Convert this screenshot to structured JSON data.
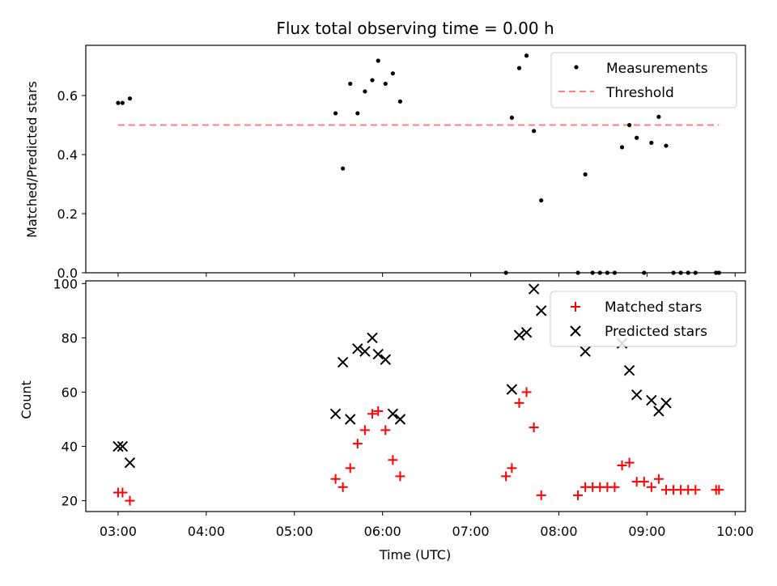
{
  "chart_data": [
    {
      "type": "scatter",
      "title": "Flux total observing time = 0.00 h",
      "ylabel": "Matched/Predicted stars",
      "ylim": [
        0,
        0.77
      ],
      "xlim": [
        "02:38",
        "10:07"
      ],
      "yticks": [
        "0.0",
        "0.2",
        "0.4",
        "0.6"
      ],
      "legend_position": "top-right",
      "series": [
        {
          "name": "Measurements",
          "marker": "dot",
          "color": "#000000",
          "points": [
            {
              "x": "03:00",
              "y": 0.575
            },
            {
              "x": "03:03",
              "y": 0.575
            },
            {
              "x": "03:08",
              "y": 0.59
            },
            {
              "x": "05:28",
              "y": 0.54
            },
            {
              "x": "05:33",
              "y": 0.353
            },
            {
              "x": "05:38",
              "y": 0.64
            },
            {
              "x": "05:43",
              "y": 0.54
            },
            {
              "x": "05:48",
              "y": 0.614
            },
            {
              "x": "05:53",
              "y": 0.652
            },
            {
              "x": "05:57",
              "y": 0.718
            },
            {
              "x": "06:02",
              "y": 0.64
            },
            {
              "x": "06:07",
              "y": 0.675
            },
            {
              "x": "06:12",
              "y": 0.58
            },
            {
              "x": "07:24",
              "y": 0.0
            },
            {
              "x": "07:28",
              "y": 0.525
            },
            {
              "x": "07:33",
              "y": 0.693
            },
            {
              "x": "07:38",
              "y": 0.735
            },
            {
              "x": "07:43",
              "y": 0.48
            },
            {
              "x": "07:48",
              "y": 0.245
            },
            {
              "x": "08:13",
              "y": 0.0
            },
            {
              "x": "08:18",
              "y": 0.333
            },
            {
              "x": "08:23",
              "y": 0.0
            },
            {
              "x": "08:28",
              "y": 0.0
            },
            {
              "x": "08:33",
              "y": 0.0
            },
            {
              "x": "08:38",
              "y": 0.0
            },
            {
              "x": "08:43",
              "y": 0.425
            },
            {
              "x": "08:48",
              "y": 0.5
            },
            {
              "x": "08:53",
              "y": 0.457
            },
            {
              "x": "08:58",
              "y": 0.0
            },
            {
              "x": "09:03",
              "y": 0.44
            },
            {
              "x": "09:08",
              "y": 0.528
            },
            {
              "x": "09:13",
              "y": 0.43
            },
            {
              "x": "09:18",
              "y": 0.0
            },
            {
              "x": "09:23",
              "y": 0.0
            },
            {
              "x": "09:28",
              "y": 0.0
            },
            {
              "x": "09:33",
              "y": 0.0
            },
            {
              "x": "09:47",
              "y": 0.0
            },
            {
              "x": "09:49",
              "y": 0.0
            }
          ]
        },
        {
          "name": "Threshold",
          "marker": "dashed-line",
          "color": "#ff7f7f",
          "points": [
            {
              "x": "03:00",
              "y": 0.5
            },
            {
              "x": "09:49",
              "y": 0.5
            }
          ]
        }
      ]
    },
    {
      "type": "scatter",
      "xlabel": "Time (UTC)",
      "ylabel": "Count",
      "ylim": [
        16,
        101
      ],
      "xlim": [
        "02:38",
        "10:07"
      ],
      "xticks": [
        "03:00",
        "04:00",
        "05:00",
        "06:00",
        "07:00",
        "08:00",
        "09:00",
        "10:00"
      ],
      "yticks": [
        "20",
        "40",
        "60",
        "80",
        "100"
      ],
      "legend_position": "top-right",
      "series": [
        {
          "name": "Matched stars",
          "marker": "plus",
          "color": "#ff0000",
          "points": [
            {
              "x": "03:00",
              "y": 23
            },
            {
              "x": "03:03",
              "y": 23
            },
            {
              "x": "03:08",
              "y": 20
            },
            {
              "x": "05:28",
              "y": 28
            },
            {
              "x": "05:33",
              "y": 25
            },
            {
              "x": "05:38",
              "y": 32
            },
            {
              "x": "05:43",
              "y": 41
            },
            {
              "x": "05:48",
              "y": 46
            },
            {
              "x": "05:53",
              "y": 52
            },
            {
              "x": "05:57",
              "y": 53
            },
            {
              "x": "06:02",
              "y": 46
            },
            {
              "x": "06:07",
              "y": 35
            },
            {
              "x": "06:12",
              "y": 29
            },
            {
              "x": "07:24",
              "y": 29
            },
            {
              "x": "07:28",
              "y": 32
            },
            {
              "x": "07:33",
              "y": 56
            },
            {
              "x": "07:38",
              "y": 60
            },
            {
              "x": "07:43",
              "y": 47
            },
            {
              "x": "07:48",
              "y": 22
            },
            {
              "x": "08:13",
              "y": 22
            },
            {
              "x": "08:18",
              "y": 25
            },
            {
              "x": "08:23",
              "y": 25
            },
            {
              "x": "08:28",
              "y": 25
            },
            {
              "x": "08:33",
              "y": 25
            },
            {
              "x": "08:38",
              "y": 25
            },
            {
              "x": "08:43",
              "y": 33
            },
            {
              "x": "08:48",
              "y": 34
            },
            {
              "x": "08:53",
              "y": 27
            },
            {
              "x": "08:58",
              "y": 27
            },
            {
              "x": "09:03",
              "y": 25
            },
            {
              "x": "09:08",
              "y": 28
            },
            {
              "x": "09:13",
              "y": 24
            },
            {
              "x": "09:18",
              "y": 24
            },
            {
              "x": "09:23",
              "y": 24
            },
            {
              "x": "09:28",
              "y": 24
            },
            {
              "x": "09:33",
              "y": 24
            },
            {
              "x": "09:47",
              "y": 24
            },
            {
              "x": "09:49",
              "y": 24
            }
          ]
        },
        {
          "name": "Predicted stars",
          "marker": "x",
          "color": "#000000",
          "points": [
            {
              "x": "03:00",
              "y": 40
            },
            {
              "x": "03:03",
              "y": 40
            },
            {
              "x": "03:08",
              "y": 34
            },
            {
              "x": "05:28",
              "y": 52
            },
            {
              "x": "05:33",
              "y": 71
            },
            {
              "x": "05:38",
              "y": 50
            },
            {
              "x": "05:43",
              "y": 76
            },
            {
              "x": "05:48",
              "y": 75
            },
            {
              "x": "05:53",
              "y": 80
            },
            {
              "x": "05:57",
              "y": 74
            },
            {
              "x": "06:02",
              "y": 72
            },
            {
              "x": "06:07",
              "y": 52
            },
            {
              "x": "06:12",
              "y": 50
            },
            {
              "x": "07:28",
              "y": 61
            },
            {
              "x": "07:33",
              "y": 81
            },
            {
              "x": "07:38",
              "y": 82
            },
            {
              "x": "07:43",
              "y": 98
            },
            {
              "x": "07:48",
              "y": 90
            },
            {
              "x": "08:18",
              "y": 75
            },
            {
              "x": "08:43",
              "y": 78
            },
            {
              "x": "08:48",
              "y": 68
            },
            {
              "x": "08:53",
              "y": 59
            },
            {
              "x": "09:03",
              "y": 57
            },
            {
              "x": "09:08",
              "y": 53
            },
            {
              "x": "09:13",
              "y": 56
            }
          ]
        }
      ]
    }
  ]
}
